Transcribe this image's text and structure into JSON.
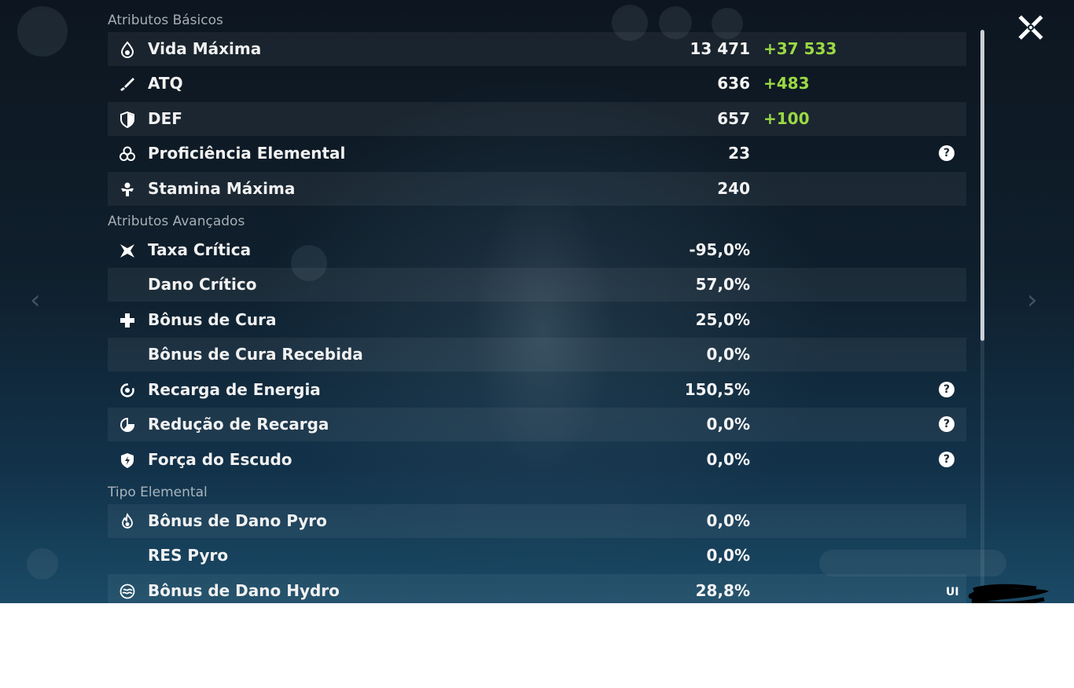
{
  "sections": {
    "basic": "Atributos Básicos",
    "advanced": "Atributos Avançados",
    "elemental": "Tipo Elemental"
  },
  "basic_stats": [
    {
      "label": "Vida Máxima",
      "value": "13 471",
      "bonus": "+37 533",
      "icon": "drop-icon"
    },
    {
      "label": "ATQ",
      "value": "636",
      "bonus": "+483",
      "icon": "sword-icon"
    },
    {
      "label": "DEF",
      "value": "657",
      "bonus": "+100",
      "icon": "shield-icon"
    },
    {
      "label": "Proficiência Elemental",
      "value": "23",
      "help": "?",
      "icon": "elemental-mastery-icon"
    },
    {
      "label": "Stamina Máxima",
      "value": "240",
      "icon": "stamina-icon"
    }
  ],
  "advanced_stats": [
    {
      "label": "Taxa Crítica",
      "value": "-95,0%",
      "icon": "crit-rate-icon"
    },
    {
      "label": "Dano Crítico",
      "value": "57,0%"
    },
    {
      "label": "Bônus de Cura",
      "value": "25,0%",
      "icon": "healing-cross-icon"
    },
    {
      "label": "Bônus de Cura Recebida",
      "value": "0,0%"
    },
    {
      "label": "Recarga de Energia",
      "value": "150,5%",
      "help": "?",
      "icon": "energy-recharge-icon"
    },
    {
      "label": "Redução de Recarga",
      "value": "0,0%",
      "help": "?",
      "icon": "cd-reduction-icon"
    },
    {
      "label": "Força do Escudo",
      "value": "0,0%",
      "help": "?",
      "icon": "shield-strength-icon"
    }
  ],
  "elemental_stats": [
    {
      "label": "Bônus de Dano Pyro",
      "value": "0,0%",
      "icon": "pyro-icon"
    },
    {
      "label": "RES Pyro",
      "value": "0,0%"
    },
    {
      "label": "Bônus de Dano Hydro",
      "value": "28,8%",
      "icon": "hydro-icon"
    }
  ],
  "uid_label": "UI",
  "colors": {
    "bonus": "#9bd944",
    "text": "#f1f1f1",
    "header": "#d2d7dc"
  }
}
